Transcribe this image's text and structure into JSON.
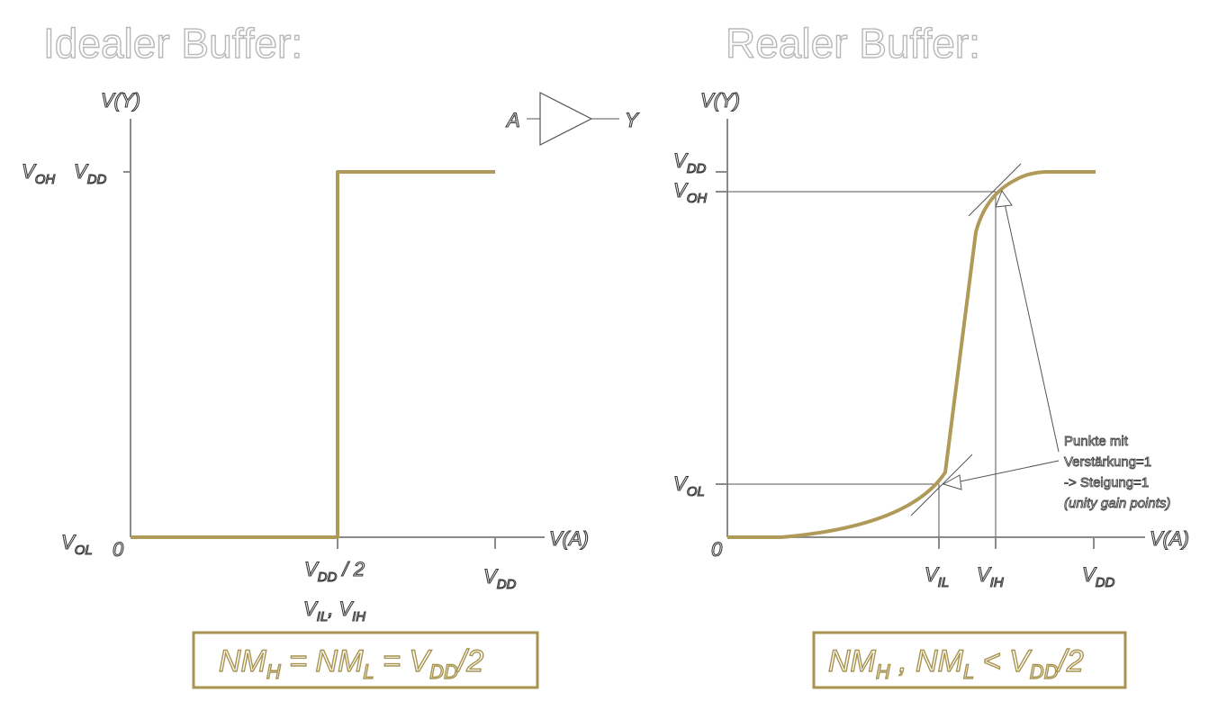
{
  "left": {
    "title": "Idealer Buffer:",
    "y_axis": "V(Y)",
    "x_axis": "V(A)",
    "y_voh": "V",
    "y_voh_sub": "OH",
    "y_vdd": "V",
    "y_vdd_sub": "DD",
    "y_vol": "V",
    "y_vol_sub": "OL",
    "origin": "0",
    "x_vdd2": "V",
    "x_vdd2_sub": "DD",
    "x_vdd2_tail": " / 2",
    "x_vil": "V",
    "x_vil_sub": "IL",
    "x_sep": ", ",
    "x_vih": "V",
    "x_vih_sub": "IH",
    "x_vdd": "V",
    "x_vdd_sub": "DD",
    "buffer_in": "A",
    "buffer_out": "Y",
    "formula": {
      "a": "NM",
      "a_sub": "H",
      "b": " = NM",
      "b_sub": "L",
      "c": " = V",
      "c_sub": "DD",
      "d": "/2"
    }
  },
  "right": {
    "title": "Realer Buffer:",
    "y_axis": "V(Y)",
    "x_axis": "V(A)",
    "y_vdd": "V",
    "y_vdd_sub": "DD",
    "y_voh": "V",
    "y_voh_sub": "OH",
    "y_vol": "V",
    "y_vol_sub": "OL",
    "origin": "0",
    "x_vil": "V",
    "x_vil_sub": "IL",
    "x_vih": "V",
    "x_vih_sub": "IH",
    "x_vdd": "V",
    "x_vdd_sub": "DD",
    "note_line1": "Punkte mit",
    "note_line2": "Verstärkung=1",
    "note_line3": "-> Steigung=1",
    "note_line4": "(unity gain points)",
    "formula": {
      "a": "NM",
      "a_sub": "H",
      "b": " , NM",
      "b_sub": "L",
      "c": " < V",
      "c_sub": "DD",
      "d": "/2"
    }
  },
  "colors": {
    "curve": "#b09a5a",
    "axis": "#8a8a8a",
    "formula_border": "#a89450"
  }
}
